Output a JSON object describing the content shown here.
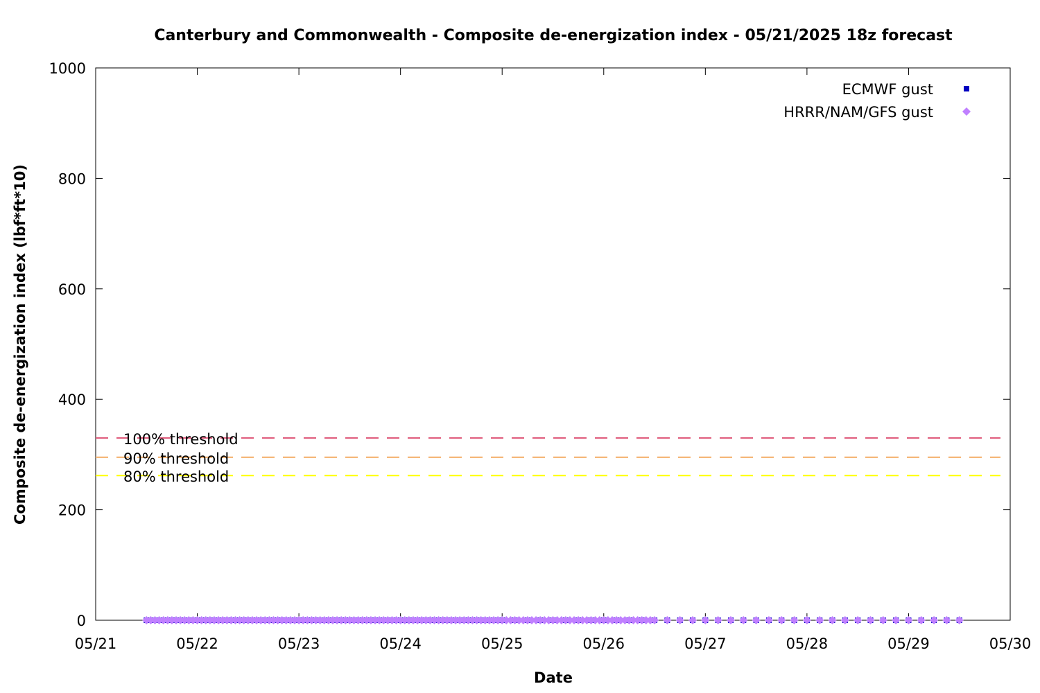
{
  "chart_data": {
    "type": "scatter",
    "title": "Canterbury and Commonwealth - Composite de-energization index - 05/21/2025 18z forecast",
    "xlabel": "Date",
    "ylabel": "Composite de-energization index (lbf*ft*10)",
    "xlim": [
      "05/21",
      "05/30"
    ],
    "ylim": [
      0,
      1000
    ],
    "x_ticks": [
      "05/21",
      "05/22",
      "05/23",
      "05/24",
      "05/25",
      "05/26",
      "05/27",
      "05/28",
      "05/29",
      "05/30"
    ],
    "y_ticks": [
      0,
      200,
      400,
      600,
      800,
      1000
    ],
    "grid": false,
    "legend_position": "top-right",
    "thresholds": [
      {
        "label": "100% threshold",
        "value": 330,
        "color": "#e06080"
      },
      {
        "label": "90% threshold",
        "value": 295,
        "color": "#f5b87a"
      },
      {
        "label": "80% threshold",
        "value": 262,
        "color": "#ffff00"
      }
    ],
    "series": [
      {
        "name": "ECMWF gust",
        "color": "#0000c0",
        "marker": "square",
        "x_start": "05/21 12z",
        "x_end": "05/29 12z",
        "hourly_until": "05/25 00z",
        "then_every_hours": 3,
        "value": 0
      },
      {
        "name": "HRRR/NAM/GFS gust",
        "color": "#c080ff",
        "marker": "diamond",
        "x_start": "05/21 12z",
        "x_end": "05/29 12z",
        "hourly_until": "05/26 12z",
        "then_every_hours": 3,
        "value": 0
      }
    ]
  }
}
